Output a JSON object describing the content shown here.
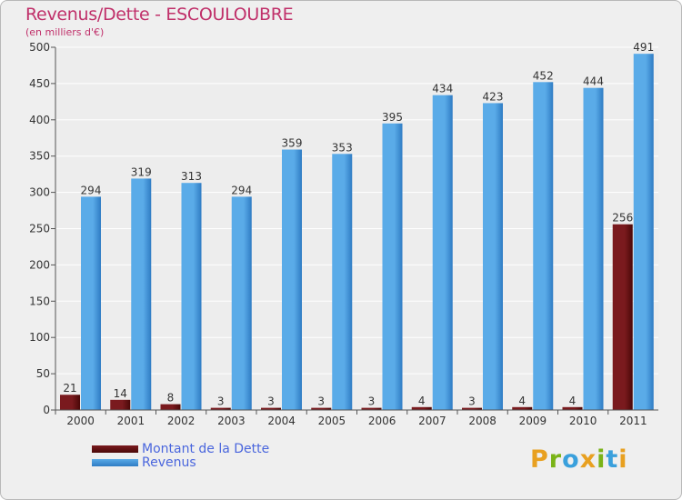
{
  "colors": {
    "title": "#c0306a",
    "dette": "#7a1a1e",
    "dette_dark": "#4a0808",
    "revenus": "#5aabe8",
    "revenus_dark": "#2f7cc4",
    "axis_text": "#333333",
    "grid": "#ffffff",
    "legend_text": "#4a66dd"
  },
  "chart_data": {
    "type": "bar",
    "title": "Revenus/Dette - ESCOULOUBRE",
    "subtitle": "(en milliers d'€)",
    "categories": [
      "2000",
      "2001",
      "2002",
      "2003",
      "2004",
      "2005",
      "2006",
      "2007",
      "2008",
      "2009",
      "2010",
      "2011"
    ],
    "series": [
      {
        "name": "Montant de la Dette",
        "values": [
          21,
          14,
          8,
          3,
          3,
          3,
          3,
          4,
          3,
          4,
          4,
          256
        ]
      },
      {
        "name": "Revenus",
        "values": [
          294,
          319,
          313,
          294,
          359,
          353,
          395,
          434,
          423,
          452,
          444,
          491
        ]
      }
    ],
    "ylim": [
      0,
      500
    ],
    "yticks": [
      0,
      50,
      100,
      150,
      200,
      250,
      300,
      350,
      400,
      450,
      500
    ],
    "grid": true,
    "legend": "bottom-left"
  },
  "legend": {
    "items": [
      {
        "label": "Montant de la Dette"
      },
      {
        "label": "Revenus"
      }
    ]
  },
  "logo": {
    "letters": [
      "P",
      "r",
      "o",
      "x",
      "i",
      "t",
      "i"
    ],
    "colors": [
      "#e8a020",
      "#7ab317",
      "#3aa0dc",
      "#e8a020",
      "#7ab317",
      "#3aa0dc",
      "#e8a020"
    ]
  }
}
